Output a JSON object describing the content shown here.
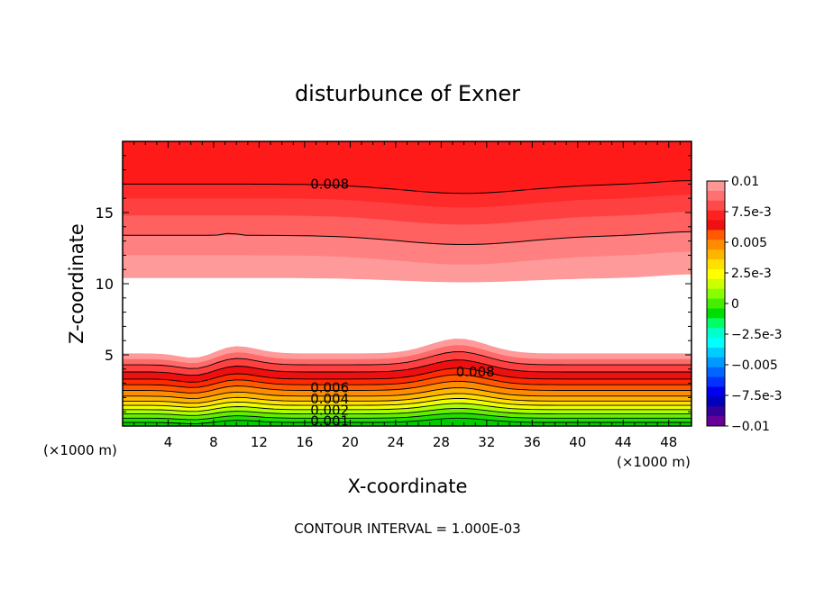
{
  "chart_data": {
    "type": "heatmap",
    "subtype": "filled-contour",
    "title": "disturbunce of Exner",
    "xlabel": "X-coordinate",
    "ylabel": "Z-coordinate",
    "x_unit_note_left": "(×1000 m)",
    "x_unit_note_right": "(×1000 m)",
    "footer": "CONTOUR INTERVAL = 1.000E-03",
    "xlim": [
      0,
      50
    ],
    "ylim": [
      0,
      20
    ],
    "x_ticks": [
      4,
      8,
      12,
      16,
      20,
      24,
      28,
      32,
      36,
      40,
      44,
      48
    ],
    "x_tick_labels": [
      "4",
      "8",
      "12",
      "16",
      "20",
      "24",
      "28",
      "32",
      "36",
      "40",
      "44",
      "48"
    ],
    "y_ticks": [
      5,
      10,
      15
    ],
    "y_tick_labels": [
      "5",
      "10",
      "15"
    ],
    "contour_interval": 0.001,
    "colorbar": {
      "min": -0.01,
      "max": 0.01,
      "tick_labels": [
        "0.01",
        "7.5e-3",
        "0.005",
        "2.5e-3",
        "0",
        "−2.5e-3",
        "−0.005",
        "−7.5e-3",
        "−0.01"
      ],
      "levels_top_to_bottom": [
        "#ff9696",
        "#ff7070",
        "#ff4a4a",
        "#ff2020",
        "#ee1010",
        "#ff5a00",
        "#ff8c00",
        "#ffb400",
        "#ffe000",
        "#ffff00",
        "#ccff00",
        "#88ff00",
        "#44ee00",
        "#00dd00",
        "#00ff66",
        "#00ffcc",
        "#00ffff",
        "#00ccff",
        "#0099ff",
        "#0066ff",
        "#0033ff",
        "#0000ee",
        "#0000bb",
        "#330099",
        "#660099"
      ]
    },
    "contour_labels": [
      {
        "text": "0.008",
        "x": 18.2,
        "z": 17.0
      },
      {
        "text": "0.008",
        "x": 31.0,
        "z": 3.8
      },
      {
        "text": "0.006",
        "x": 18.2,
        "z": 2.7
      },
      {
        "text": "0.004",
        "x": 18.2,
        "z": 1.9
      },
      {
        "text": "0.002",
        "x": 18.2,
        "z": 1.1
      },
      {
        "text": "0.001",
        "x": 18.2,
        "z": 0.35
      }
    ],
    "field_profile": {
      "description_levels": "Exner disturbance increases from ~0 at the surface to ~0.009 near z=4, a blank (undefined/masked) band between ~5 and ~10.5, then values decreasing upward from ~0.007 near z=11 to ~0.01 at top",
      "upper_region_bands": [
        {
          "value": 0.005,
          "z_base": 10.4,
          "color": "#ff9a9a"
        },
        {
          "value": 0.0055,
          "z_base": 12.0,
          "color": "#ff8080"
        },
        {
          "value": 0.006,
          "z_base": 13.4,
          "color": "#ff6060"
        },
        {
          "value": 0.007,
          "z_base": 14.8,
          "color": "#ff4040"
        },
        {
          "value": 0.0075,
          "z_base": 16.0,
          "color": "#ff2a2a"
        },
        {
          "value": 0.008,
          "z_base": 17.0,
          "color": "#ff1a1a"
        }
      ],
      "lower_region_bands": [
        {
          "value": 0.0,
          "z_top": 0.25,
          "color": "#00cc00"
        },
        {
          "value": 0.0005,
          "z_top": 0.55,
          "color": "#22dd00"
        },
        {
          "value": 0.001,
          "z_top": 0.85,
          "color": "#66ee00"
        },
        {
          "value": 0.0015,
          "z_top": 1.15,
          "color": "#aaff00"
        },
        {
          "value": 0.002,
          "z_top": 1.45,
          "color": "#eeff00"
        },
        {
          "value": 0.0025,
          "z_top": 1.75,
          "color": "#ffe000"
        },
        {
          "value": 0.003,
          "z_top": 2.1,
          "color": "#ffb400"
        },
        {
          "value": 0.004,
          "z_top": 2.5,
          "color": "#ff8c00"
        },
        {
          "value": 0.005,
          "z_top": 2.9,
          "color": "#ff5a00"
        },
        {
          "value": 0.006,
          "z_top": 3.3,
          "color": "#ff2a00"
        },
        {
          "value": 0.007,
          "z_top": 3.8,
          "color": "#ee1010"
        },
        {
          "value": 0.008,
          "z_top": 4.3,
          "color": "#ff4040"
        },
        {
          "value": 0.0085,
          "z_top": 4.7,
          "color": "#ff6a6a"
        },
        {
          "value": 0.009,
          "z_top": 5.1,
          "color": "#ff9a9a"
        }
      ]
    }
  }
}
